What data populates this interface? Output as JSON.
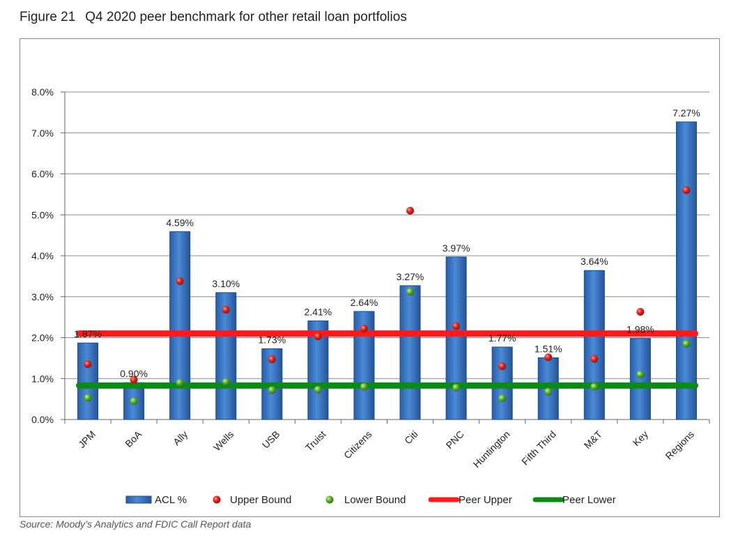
{
  "figure": {
    "number": "Figure 21",
    "title": "Q4 2020 peer benchmark for other retail loan portfolios"
  },
  "source": "Source: Moody’s Analytics and FDIC Call Report data",
  "colors": {
    "bar": "#3a76c4",
    "upper_dot": "#d8201c",
    "lower_dot": "#5cb52c",
    "peer_upper": "#ff1a1a",
    "peer_lower": "#0c8a17"
  },
  "chart_data": {
    "type": "bar",
    "categories": [
      "JPM",
      "BoA",
      "Ally",
      "Wells",
      "USB",
      "Truist",
      "Citizens",
      "Citi",
      "PNC",
      "Huntington",
      "Fifth Third",
      "M&T",
      "Key",
      "Regions"
    ],
    "series": [
      {
        "name": "ACL %",
        "type": "bar",
        "values": [
          1.87,
          0.9,
          4.59,
          3.1,
          1.73,
          2.41,
          2.64,
          3.27,
          3.97,
          1.77,
          1.51,
          3.64,
          1.98,
          7.27
        ]
      },
      {
        "name": "Upper Bound",
        "type": "scatter",
        "values": [
          1.35,
          0.97,
          3.38,
          2.68,
          1.47,
          2.03,
          2.22,
          5.1,
          2.28,
          1.3,
          1.52,
          1.48,
          2.63,
          5.6
        ]
      },
      {
        "name": "Lower Bound",
        "type": "scatter",
        "values": [
          0.53,
          0.45,
          0.9,
          0.92,
          0.72,
          0.73,
          0.8,
          3.12,
          0.78,
          0.52,
          0.68,
          0.8,
          1.1,
          1.85
        ]
      },
      {
        "name": "Peer Upper",
        "type": "line",
        "value": 2.1
      },
      {
        "name": "Peer Lower",
        "type": "line",
        "value": 0.83
      }
    ],
    "data_labels": [
      "1.87%",
      "0.90%",
      "4.59%",
      "3.10%",
      "1.73%",
      "2.41%",
      "2.64%",
      "3.27%",
      "3.97%",
      "1.77%",
      "1.51%",
      "3.64%",
      "1.98%",
      "7.27%"
    ],
    "yticks": [
      "0.0%",
      "1.0%",
      "2.0%",
      "3.0%",
      "4.0%",
      "5.0%",
      "6.0%",
      "7.0%",
      "8.0%"
    ],
    "ylim": [
      0,
      8
    ],
    "grid": true,
    "legend_position": "bottom"
  }
}
